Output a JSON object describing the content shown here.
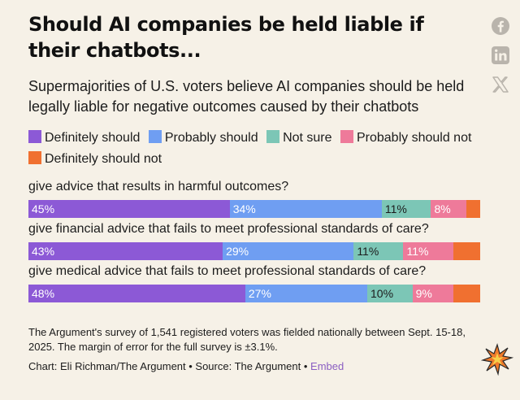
{
  "header": {
    "title": "Should AI companies be held liable if their chatbots...",
    "subtitle": "Supermajorities of U.S. voters believe AI companies should be held legally liable for negative outcomes caused by their chatbots"
  },
  "share": {
    "icons": [
      "facebook-icon",
      "linkedin-icon",
      "x-icon"
    ]
  },
  "colors": {
    "background": "#f6f1e7",
    "definitely_should": "#8c59d6",
    "probably_should": "#6f9ef2",
    "not_sure": "#7cc6b6",
    "probably_should_not": "#ee7a9a",
    "definitely_should_not": "#f07030",
    "embed_link": "#8b5fc2"
  },
  "chart_data": {
    "type": "bar",
    "orientation": "horizontal",
    "stacked": true,
    "normalized_percent": true,
    "legend_placement": "top",
    "series": [
      {
        "name": "Definitely should",
        "color": "#8c59d6",
        "values": [
          45,
          43,
          48
        ]
      },
      {
        "name": "Probably should",
        "color": "#6f9ef2",
        "values": [
          34,
          29,
          27
        ]
      },
      {
        "name": "Not sure",
        "color": "#7cc6b6",
        "values": [
          11,
          11,
          10
        ]
      },
      {
        "name": "Probably should not",
        "color": "#ee7a9a",
        "values": [
          8,
          11,
          9
        ]
      },
      {
        "name": "Definitely should not",
        "color": "#f07030",
        "values": [
          3,
          6,
          6
        ]
      }
    ],
    "categories": [
      "give advice that results in harmful outcomes?",
      "give financial advice that fails to meet professional standards of care?",
      "give medical advice that fails to meet professional standards of care?"
    ],
    "data_labels": [
      [
        "45%",
        "34%",
        "11%",
        "8%",
        ""
      ],
      [
        "43%",
        "29%",
        "11%",
        "11%",
        ""
      ],
      [
        "48%",
        "27%",
        "10%",
        "9%",
        ""
      ]
    ]
  },
  "footer": {
    "note": "The Argument's survey of 1,541 registered voters was fielded nationally between Sept. 15-18, 2025. The margin of error for the full survey is ±3.1%.",
    "credit_prefix": "Chart: Eli Richman/The Argument • Source: The Argument • ",
    "embed_label": "Embed"
  }
}
